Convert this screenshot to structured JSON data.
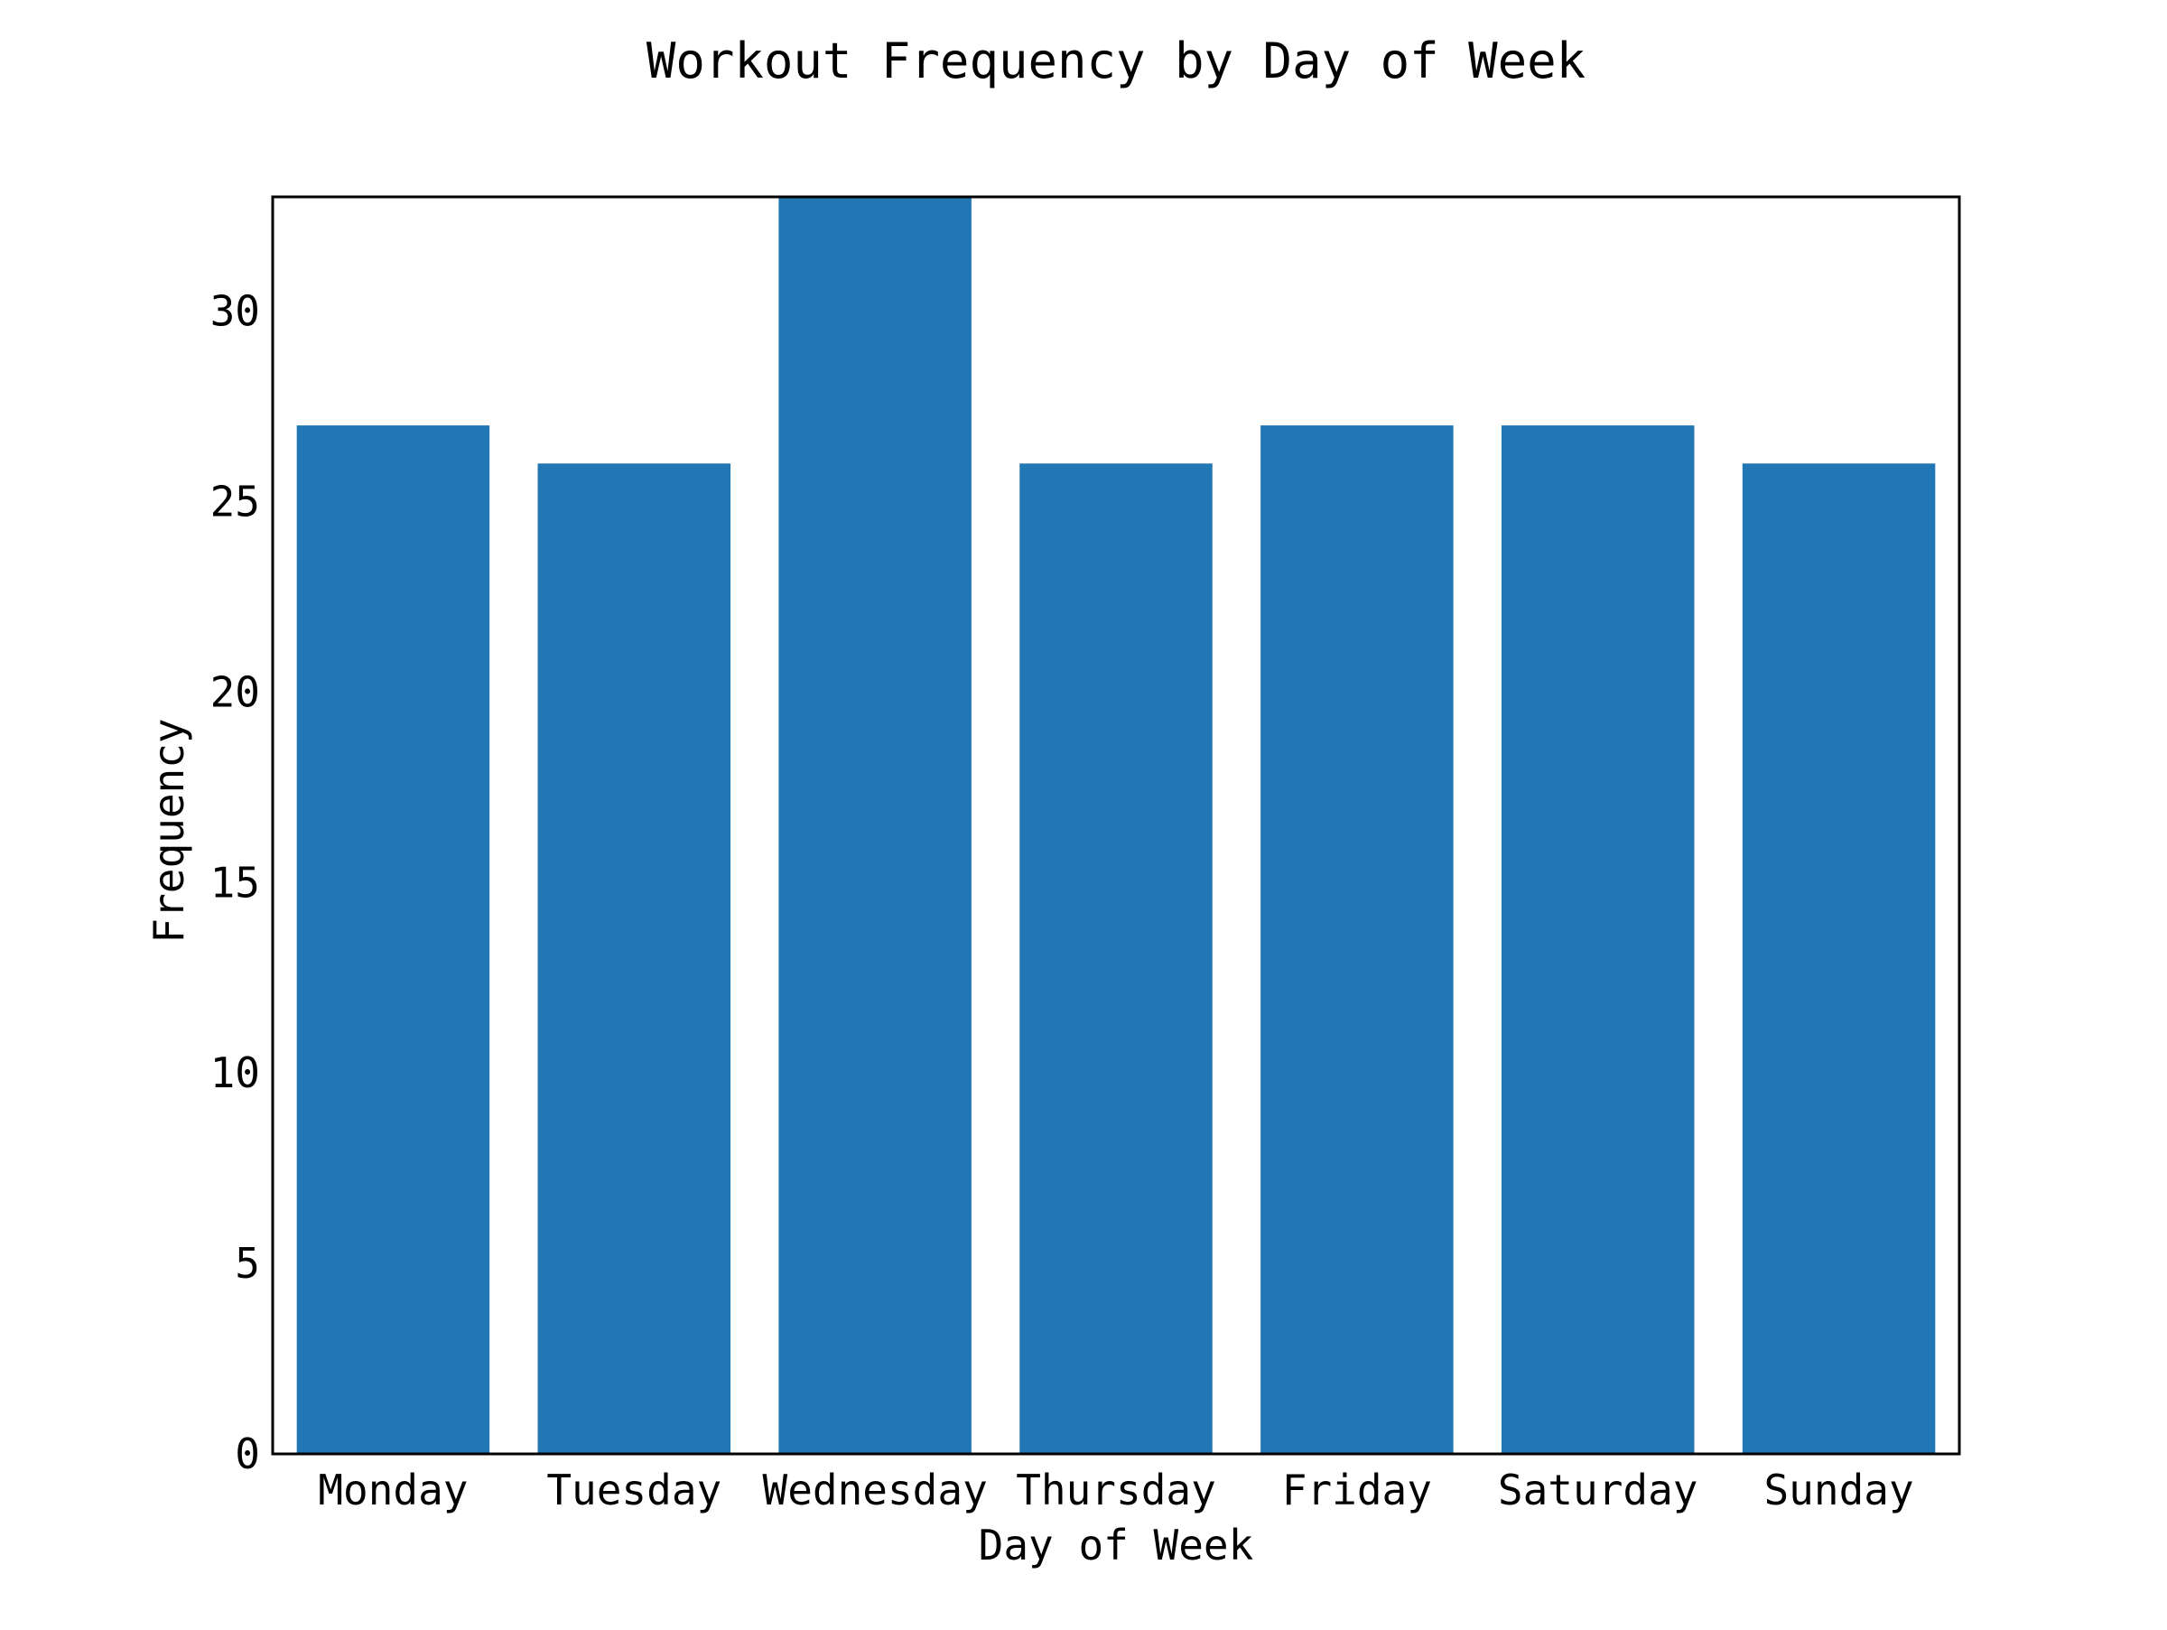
{
  "chart_data": {
    "type": "bar",
    "title": "Workout Frequency by Day of Week",
    "xlabel": "Day of Week",
    "ylabel": "Frequency",
    "categories": [
      "Monday",
      "Tuesday",
      "Wednesday",
      "Thursday",
      "Friday",
      "Saturday",
      "Sunday"
    ],
    "values": [
      27,
      26,
      33,
      26,
      27,
      27,
      26
    ],
    "ylim": [
      0,
      33
    ],
    "yticks": [
      0,
      5,
      10,
      15,
      20,
      25,
      30
    ],
    "grid": false,
    "legend": "none",
    "colors": {
      "bar": "#2077b4",
      "axes": "#000000",
      "background": "#ffffff"
    }
  }
}
